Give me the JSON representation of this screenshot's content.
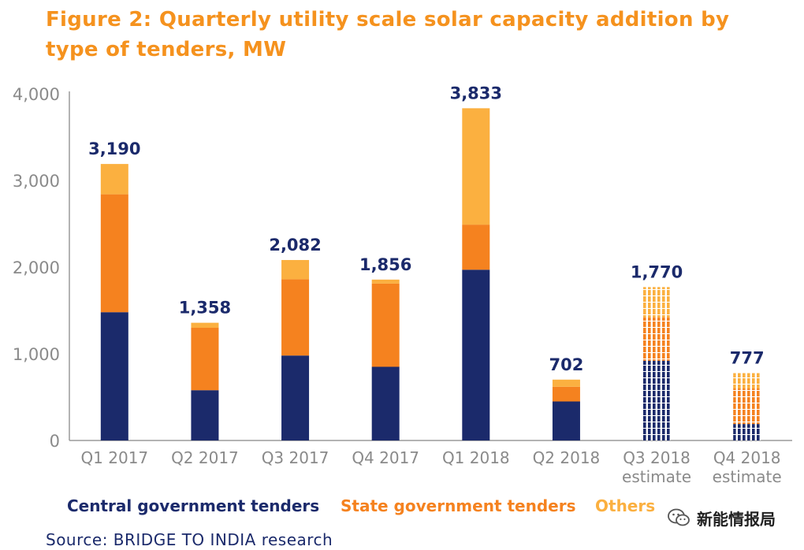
{
  "title": "Figure 2: Quarterly utility scale solar capacity addition by type of tenders, MW",
  "source": "Source: BRIDGE TO INDIA research",
  "watermark": "新能情报局",
  "colors": {
    "central": "#1b2a6b",
    "state": "#f5821f",
    "others": "#fbb040",
    "axis": "#9a9a9a",
    "tick": "#8a8a8a"
  },
  "chart_data": {
    "type": "bar",
    "stacked": true,
    "categories": [
      "Q1 2017",
      "Q2 2017",
      "Q3 2017",
      "Q4 2017",
      "Q1 2018",
      "Q2 2018",
      "Q3 2018\nestimate",
      "Q4 2018\nestimate"
    ],
    "estimate": [
      false,
      false,
      false,
      false,
      false,
      false,
      true,
      true
    ],
    "series": [
      {
        "name": "Central government tenders",
        "values": [
          1480,
          580,
          980,
          850,
          1970,
          450,
          920,
          190
        ]
      },
      {
        "name": "State government tenders",
        "values": [
          1360,
          720,
          880,
          960,
          520,
          170,
          500,
          410
        ]
      },
      {
        "name": "Others",
        "values": [
          350,
          58,
          222,
          46,
          1343,
          82,
          350,
          177
        ]
      }
    ],
    "totals": [
      "3,190",
      "1,358",
      "2,082",
      "1,856",
      "3,833",
      "702",
      "1,770",
      "777"
    ],
    "ylim": [
      0,
      4000
    ],
    "yticks": [
      "0",
      "1,000",
      "2,000",
      "3,000",
      "4,000"
    ],
    "grid": false,
    "legend_position": "bottom"
  }
}
